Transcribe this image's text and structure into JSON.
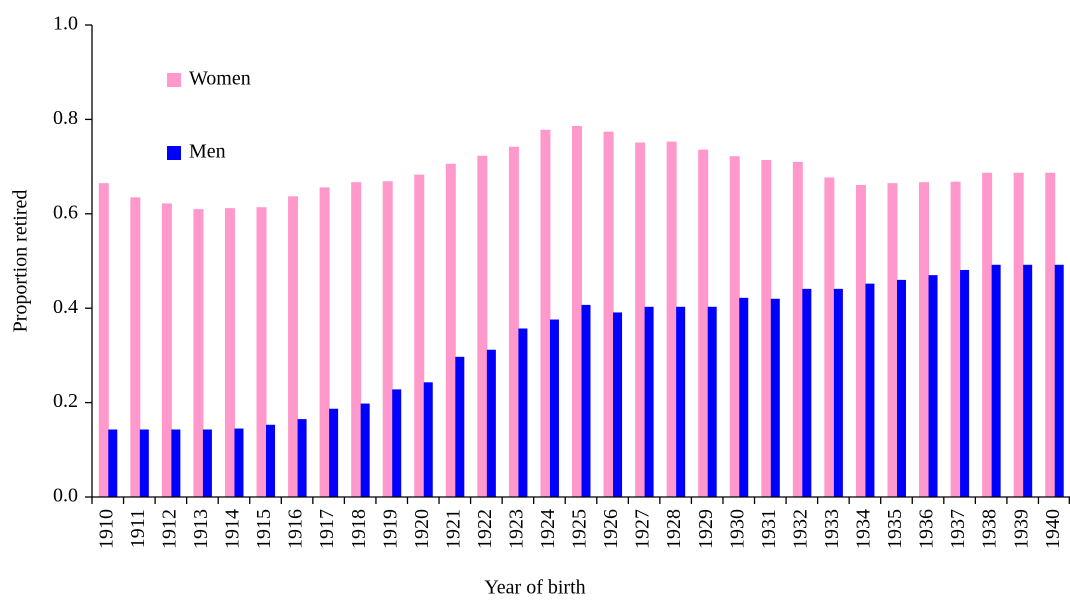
{
  "chart_data": {
    "type": "bar",
    "x_label": "Year of birth",
    "y_label": "Proportion retired",
    "categories": [
      "1910",
      "1911",
      "1912",
      "1913",
      "1914",
      "1915",
      "1916",
      "1917",
      "1918",
      "1919",
      "1920",
      "1921",
      "1922",
      "1923",
      "1924",
      "1925",
      "1926",
      "1927",
      "1928",
      "1929",
      "1930",
      "1931",
      "1932",
      "1933",
      "1934",
      "1935",
      "1936",
      "1937",
      "1938",
      "1939",
      "1940"
    ],
    "series": [
      {
        "name": "Women",
        "color": "#ff99cc",
        "values": [
          0.665,
          0.635,
          0.622,
          0.61,
          0.612,
          0.614,
          0.637,
          0.656,
          0.667,
          0.669,
          0.683,
          0.706,
          0.723,
          0.742,
          0.778,
          0.786,
          0.774,
          0.751,
          0.753,
          0.736,
          0.722,
          0.714,
          0.71,
          0.677,
          0.661,
          0.665,
          0.667,
          0.668,
          0.687,
          0.687,
          0.687
        ]
      },
      {
        "name": "Men",
        "color": "#0000ff",
        "values": [
          0.143,
          0.143,
          0.143,
          0.143,
          0.145,
          0.153,
          0.165,
          0.187,
          0.198,
          0.228,
          0.243,
          0.297,
          0.312,
          0.357,
          0.376,
          0.407,
          0.391,
          0.403,
          0.403,
          0.403,
          0.422,
          0.42,
          0.441,
          0.441,
          0.452,
          0.46,
          0.47,
          0.481,
          0.492,
          0.492,
          0.492
        ]
      }
    ],
    "ylim": [
      0,
      1
    ],
    "yticks": [
      {
        "value": 0,
        "label": "0.0"
      },
      0.2,
      0.4,
      0.6,
      0.8,
      {
        "value": 1,
        "label": "1.0"
      }
    ],
    "legend": "upper-left",
    "grid": false
  }
}
